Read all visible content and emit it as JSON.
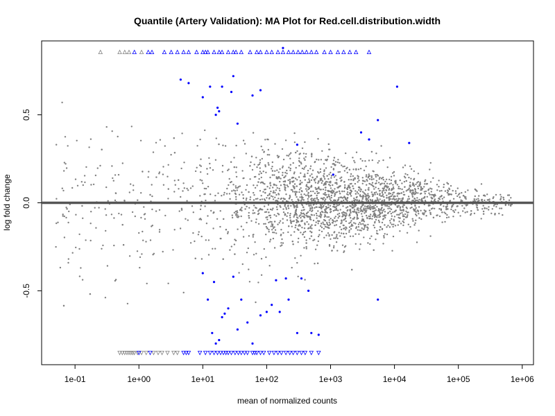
{
  "chart_data": {
    "type": "scatter",
    "title": "Quantile (Artery Validation): MA Plot for Red.cell.distribution.width",
    "xlabel": "mean of normalized counts",
    "ylabel": "log fold change",
    "x_scale": "log10",
    "xlim": [
      0.03,
      1500000
    ],
    "ylim": [
      -0.92,
      0.92
    ],
    "x_ticks": [
      0.1,
      1,
      10,
      100,
      1000,
      10000,
      100000,
      1000000
    ],
    "x_tick_labels": [
      "1e-01",
      "1e+00",
      "1e+01",
      "1e+02",
      "1e+03",
      "1e+04",
      "1e+05",
      "1e+06"
    ],
    "y_ticks": [
      -0.5,
      0.0,
      0.5
    ],
    "y_tick_labels": [
      "-0.5",
      "0.0",
      "0.5"
    ],
    "reference_line_y": 0,
    "grid": false,
    "colors": {
      "not_significant": "#808080",
      "significant": "#0000ff",
      "reference_line": "#555555"
    },
    "series": [
      {
        "group": "not-significant",
        "description_cloud": {
          "x_log10_range": [
            -1.3,
            5.85
          ],
          "density_peak_log10": 3.2,
          "y_spread_at_low_counts": 0.5,
          "y_spread_at_high_counts": 0.05
        }
      },
      {
        "group": "significant",
        "points": [
          [
            4.5,
            0.7
          ],
          [
            6,
            0.68
          ],
          [
            10,
            0.6
          ],
          [
            13,
            0.66
          ],
          [
            16,
            0.5
          ],
          [
            17,
            0.54
          ],
          [
            18,
            0.52
          ],
          [
            20,
            0.66
          ],
          [
            28,
            0.63
          ],
          [
            30,
            0.72
          ],
          [
            35,
            0.45
          ],
          [
            60,
            0.61
          ],
          [
            80,
            0.64
          ],
          [
            180,
            0.88
          ],
          [
            300,
            0.33
          ],
          [
            1100,
            0.16
          ],
          [
            3000,
            0.4
          ],
          [
            4000,
            0.36
          ],
          [
            5500,
            0.47
          ],
          [
            11000,
            0.66
          ],
          [
            17000,
            0.34
          ],
          [
            10,
            -0.4
          ],
          [
            12,
            -0.55
          ],
          [
            14,
            -0.74
          ],
          [
            15,
            -0.45
          ],
          [
            16,
            -0.8
          ],
          [
            18,
            -0.78
          ],
          [
            20,
            -0.65
          ],
          [
            22,
            -0.63
          ],
          [
            25,
            -0.6
          ],
          [
            30,
            -0.42
          ],
          [
            35,
            -0.72
          ],
          [
            40,
            -0.55
          ],
          [
            50,
            -0.68
          ],
          [
            60,
            -0.8
          ],
          [
            80,
            -0.64
          ],
          [
            100,
            -0.62
          ],
          [
            120,
            -0.58
          ],
          [
            140,
            -0.44
          ],
          [
            160,
            -0.62
          ],
          [
            200,
            -0.43
          ],
          [
            220,
            -0.55
          ],
          [
            300,
            -0.74
          ],
          [
            350,
            -0.43
          ],
          [
            450,
            -0.5
          ],
          [
            500,
            -0.74
          ],
          [
            650,
            -0.75
          ],
          [
            5500,
            -0.55
          ]
        ]
      }
    ],
    "clipped_up": {
      "marker": "triangle-up",
      "gray_x": [
        0.25,
        0.5,
        0.6,
        0.7,
        1.1
      ],
      "blue_x": [
        0.85,
        1.4,
        1.6,
        2.5,
        3.2,
        4,
        5,
        6,
        8,
        10,
        11,
        12,
        15,
        18,
        20,
        25,
        30,
        33,
        40,
        55,
        70,
        80,
        100,
        120,
        150,
        180,
        220,
        260,
        310,
        360,
        420,
        500,
        600,
        800,
        1000,
        1300,
        1600,
        2000,
        2500,
        4000
      ]
    },
    "clipped_down": {
      "marker": "triangle-down",
      "gray_x": [
        0.5,
        0.55,
        0.6,
        0.65,
        0.7,
        0.75,
        0.8,
        0.85,
        0.95,
        1.1,
        1.3,
        1.7,
        2.0,
        2.3,
        2.8,
        3.5,
        4.0
      ],
      "blue_x": [
        1.0,
        1.5,
        5.0,
        5.5,
        6.0,
        9.0,
        11,
        13,
        15,
        17,
        19,
        21,
        23,
        25,
        28,
        32,
        36,
        40,
        45,
        50,
        60,
        65,
        70,
        80,
        90,
        110,
        130,
        150,
        170,
        200,
        230,
        260,
        300,
        350,
        400,
        500,
        650
      ]
    }
  }
}
